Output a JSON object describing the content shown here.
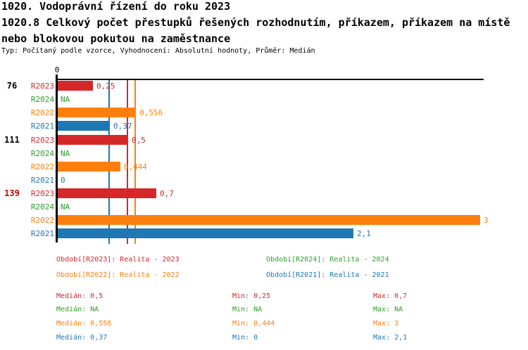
{
  "header": {
    "title_line1": "1020. Vodoprávní řízení do roku 2023",
    "title_line2": "1020.8 Celkový počet přestupků řešených rozhodnutím, příkazem, příkazem na místě",
    "title_line3": "nebo blokovou pokutou na zaměstnance",
    "subtitle": "Typ: Počítaný podle vzorce, Vyhodnocení: Absolutní hodnoty, Průměr: Medián"
  },
  "colors": {
    "r2023": "#d62728",
    "r2024": "#2ca02c",
    "r2022": "#ff7f0e",
    "r2021": "#1f77b4",
    "axis": "#000000",
    "group_label": "#000000",
    "group_label_highlight": "#cc0000"
  },
  "chart_data": {
    "type": "bar",
    "orientation": "horizontal",
    "axis": {
      "tick_label": "0",
      "origin_value": 0,
      "xmax_implied": 3
    },
    "series_order": [
      "R2023",
      "R2024",
      "R2022",
      "R2021"
    ],
    "groups": [
      {
        "label": "76",
        "highlight": false,
        "bars": [
          {
            "series": "R2023",
            "value": 0.25,
            "display": "0,25",
            "color_key": "r2023"
          },
          {
            "series": "R2024",
            "value": null,
            "display": "NA",
            "color_key": "r2024"
          },
          {
            "series": "R2022",
            "value": 0.556,
            "display": "0,556",
            "color_key": "r2022"
          },
          {
            "series": "R2021",
            "value": 0.37,
            "display": "0,37",
            "color_key": "r2021"
          }
        ]
      },
      {
        "label": "111",
        "highlight": false,
        "bars": [
          {
            "series": "R2023",
            "value": 0.5,
            "display": "0,5",
            "color_key": "r2023"
          },
          {
            "series": "R2024",
            "value": null,
            "display": "NA",
            "color_key": "r2024"
          },
          {
            "series": "R2022",
            "value": 0.444,
            "display": "0,444",
            "color_key": "r2022"
          },
          {
            "series": "R2021",
            "value": 0,
            "display": "0",
            "color_key": "r2021"
          }
        ]
      },
      {
        "label": "139",
        "highlight": true,
        "bars": [
          {
            "series": "R2023",
            "value": 0.7,
            "display": "0,7",
            "color_key": "r2023"
          },
          {
            "series": "R2024",
            "value": null,
            "display": "NA",
            "color_key": "r2024"
          },
          {
            "series": "R2022",
            "value": 3,
            "display": "3",
            "color_key": "r2022"
          },
          {
            "series": "R2021",
            "value": 2.1,
            "display": "2,1",
            "color_key": "r2021"
          }
        ]
      }
    ],
    "median_lines": [
      {
        "value": 0.37,
        "color_key": "r2021"
      },
      {
        "value": 0.5,
        "color_key": "r2023"
      },
      {
        "value": 0.556,
        "color_key": "r2022"
      }
    ]
  },
  "legend": [
    {
      "text": "Období[R2023]: Realita - 2023",
      "color_key": "r2023"
    },
    {
      "text": "Období[R2024]: Realita - 2024",
      "color_key": "r2024"
    },
    {
      "text": "Období[R2022]: Realita - 2022",
      "color_key": "r2022"
    },
    {
      "text": "Období[R2021]: Realita - 2021",
      "color_key": "r2021"
    }
  ],
  "stats": [
    {
      "median": "Medián: 0,5",
      "min": "Min: 0,25",
      "max": "Max: 0,7",
      "color_key": "r2023"
    },
    {
      "median": "Medián: NA",
      "min": "Min: NA",
      "max": "Max: NA",
      "color_key": "r2024"
    },
    {
      "median": "Medián: 0,556",
      "min": "Min: 0,444",
      "max": "Max: 3",
      "color_key": "r2022"
    },
    {
      "median": "Medián: 0,37",
      "min": "Min: 0",
      "max": "Max: 2,1",
      "color_key": "r2021"
    }
  ]
}
